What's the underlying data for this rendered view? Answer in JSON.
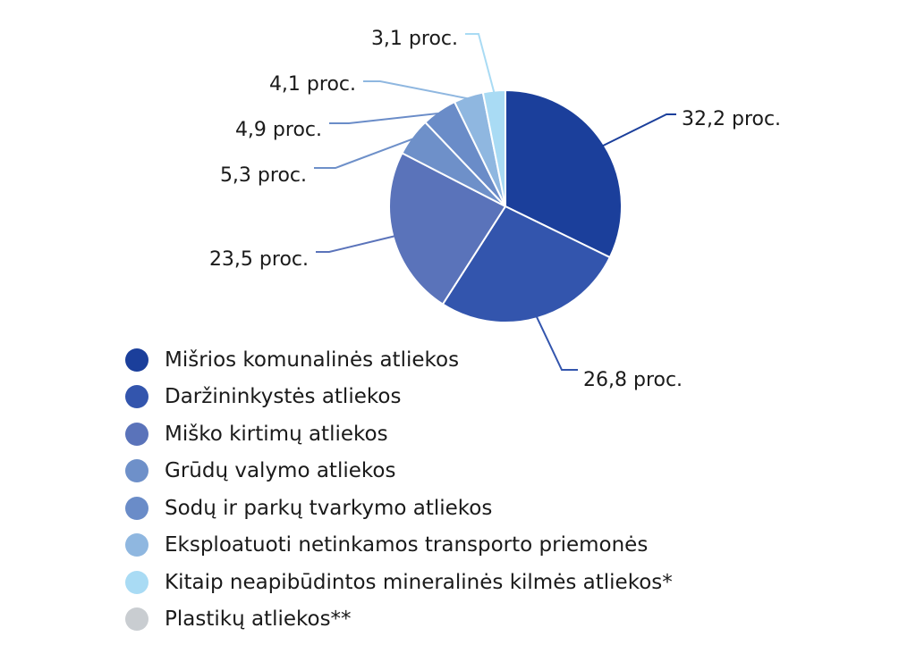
{
  "chart_data": {
    "type": "pie",
    "title": "",
    "slices": [
      {
        "label": "Mišrios komunalinės atliekos",
        "value": 32.2,
        "value_label": "32,2 proc.",
        "color": "#1b3f9b"
      },
      {
        "label": "Daržininkystės atliekos",
        "value": 26.8,
        "value_label": "26,8 proc.",
        "color": "#3355ad"
      },
      {
        "label": "Miško kirtimų atliekos",
        "value": 23.5,
        "value_label": "23,5 proc.",
        "color": "#5a73ba"
      },
      {
        "label": "Grūdų valymo atliekos",
        "value": 5.3,
        "value_label": "5,3 proc.",
        "color": "#6e90c9"
      },
      {
        "label": "Sodų ir parkų tvarkymo atliekos",
        "value": 4.9,
        "value_label": "4,9 proc.",
        "color": "#6a8cc8"
      },
      {
        "label": "Eksploatuoti netinkamos transporto priemonės",
        "value": 4.1,
        "value_label": "4,1 proc.",
        "color": "#8fb7e0"
      },
      {
        "label": "Kitaip neapibūdintos mineralinės kilmės atliekos*",
        "value": 3.1,
        "value_label": "3,1 proc.",
        "color": "#a9dbf4"
      },
      {
        "label": "Plastikų atliekos**",
        "value": 0,
        "value_label": "",
        "color": "#c9cdd1"
      }
    ],
    "legend_position": "bottom-left"
  }
}
